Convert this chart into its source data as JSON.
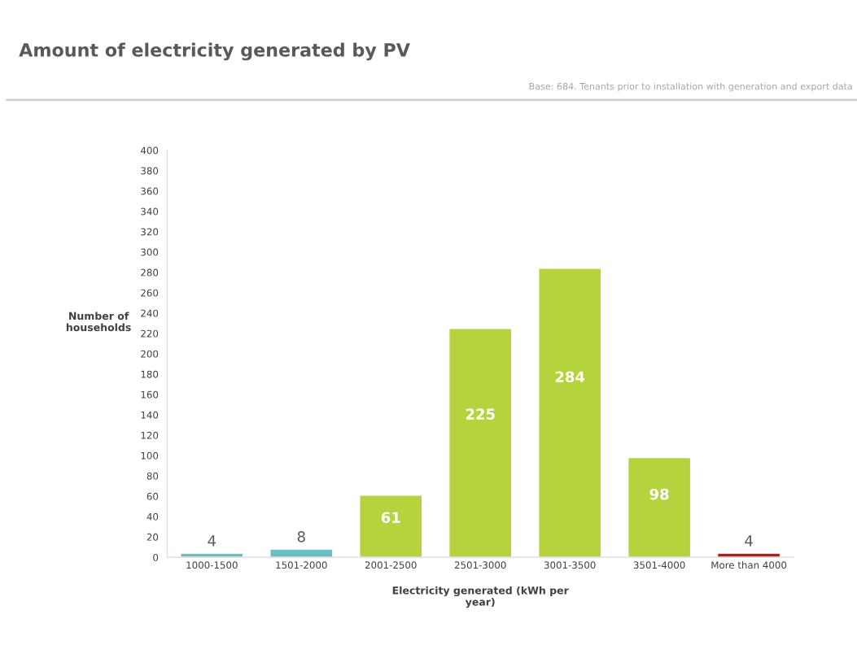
{
  "chart_data": {
    "type": "bar",
    "title": "Amount of electricity generated by PV",
    "subtitle": "Base: 684. Tenants prior to installation with generation and export data",
    "xlabel": "Electricity generated (kWh per\nyear)",
    "ylabel": "Number of\nhouseholds",
    "categories": [
      "1000-1500",
      "1501-2000",
      "2001-2500",
      "2501-3000",
      "3001-3500",
      "3501-4000",
      "More than 4000"
    ],
    "values": [
      4,
      8,
      61,
      225,
      284,
      98,
      4
    ],
    "colors": [
      "#6bbfc4",
      "#6bbfc4",
      "#b5d33d",
      "#b5d33d",
      "#b5d33d",
      "#b5d33d",
      "#b01c1c"
    ],
    "ylim": [
      0,
      400
    ],
    "yticks": [
      0,
      20,
      40,
      60,
      80,
      100,
      120,
      140,
      160,
      180,
      200,
      220,
      240,
      260,
      280,
      300,
      320,
      340,
      360,
      380,
      400
    ],
    "data_labels": true,
    "grid": false,
    "legend": false
  }
}
